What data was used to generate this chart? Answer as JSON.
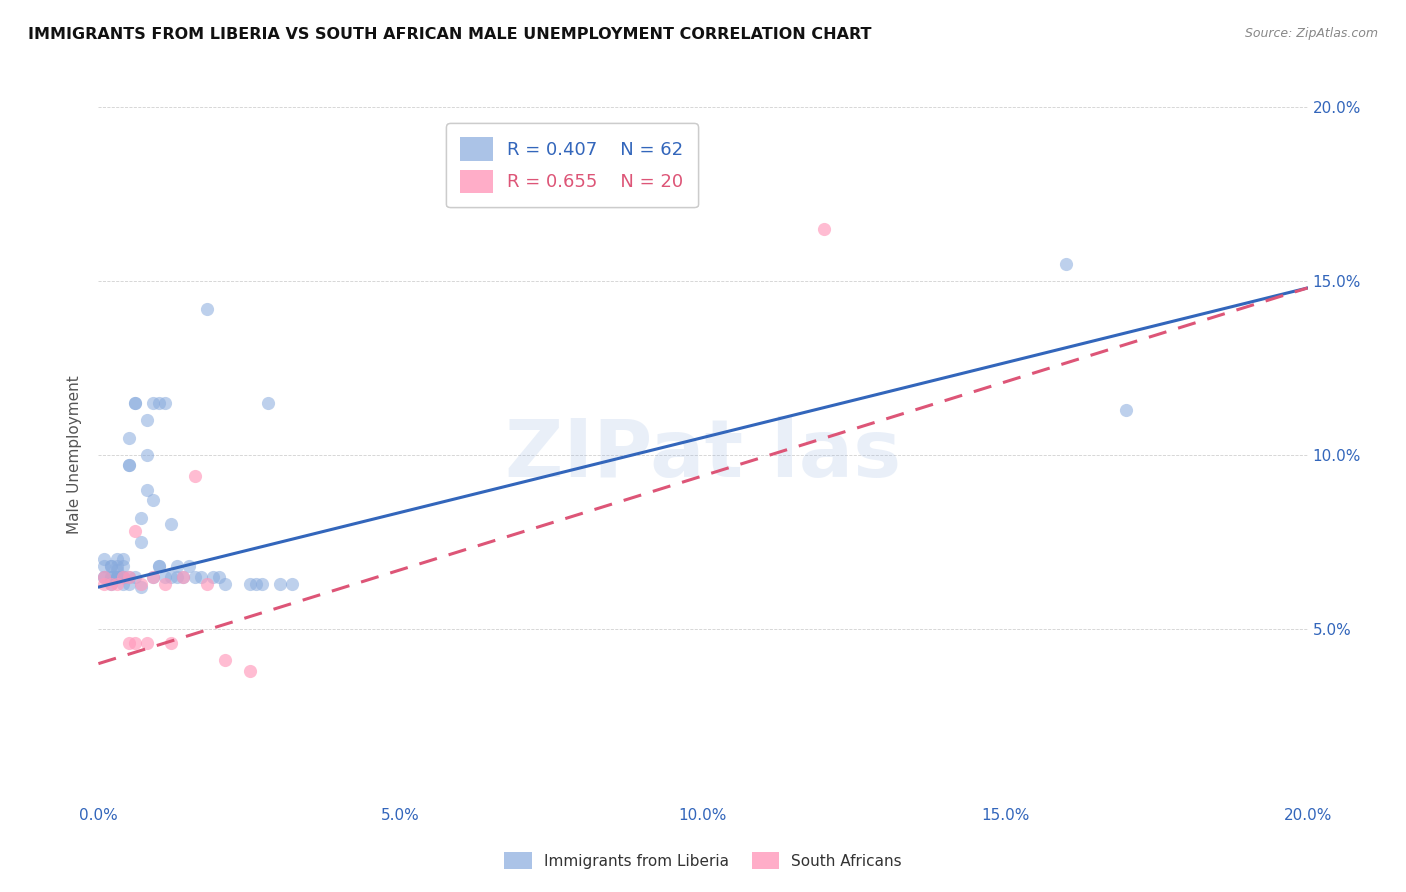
{
  "title": "IMMIGRANTS FROM LIBERIA VS SOUTH AFRICAN MALE UNEMPLOYMENT CORRELATION CHART",
  "source": "Source: ZipAtlas.com",
  "ylabel": "Male Unemployment",
  "xlim": [
    0.0,
    0.2
  ],
  "ylim": [
    0.0,
    0.2
  ],
  "xtick_labels": [
    "0.0%",
    "5.0%",
    "10.0%",
    "15.0%",
    "20.0%"
  ],
  "xtick_positions": [
    0.0,
    0.05,
    0.1,
    0.15,
    0.2
  ],
  "right_ytick_labels": [
    "5.0%",
    "10.0%",
    "15.0%",
    "20.0%"
  ],
  "right_ytick_positions": [
    0.05,
    0.1,
    0.15,
    0.2
  ],
  "blue_color": "#88AADD",
  "pink_color": "#FF99BB",
  "blue_line_color": "#3366BB",
  "pink_line_color": "#DD5577",
  "legend_R1": "R = 0.407",
  "legend_N1": "N = 62",
  "legend_R2": "R = 0.655",
  "legend_N2": "N = 20",
  "blue_scatter_x": [
    0.001,
    0.001,
    0.001,
    0.001,
    0.002,
    0.002,
    0.002,
    0.002,
    0.002,
    0.003,
    0.003,
    0.003,
    0.003,
    0.003,
    0.003,
    0.004,
    0.004,
    0.004,
    0.004,
    0.004,
    0.005,
    0.005,
    0.005,
    0.005,
    0.005,
    0.006,
    0.006,
    0.006,
    0.007,
    0.007,
    0.007,
    0.008,
    0.008,
    0.008,
    0.009,
    0.009,
    0.009,
    0.01,
    0.01,
    0.01,
    0.011,
    0.011,
    0.012,
    0.012,
    0.013,
    0.013,
    0.014,
    0.015,
    0.016,
    0.017,
    0.018,
    0.019,
    0.02,
    0.021,
    0.025,
    0.026,
    0.027,
    0.028,
    0.03,
    0.032,
    0.16,
    0.17
  ],
  "blue_scatter_y": [
    0.065,
    0.065,
    0.068,
    0.07,
    0.063,
    0.065,
    0.065,
    0.068,
    0.068,
    0.065,
    0.065,
    0.065,
    0.067,
    0.068,
    0.07,
    0.063,
    0.065,
    0.065,
    0.068,
    0.07,
    0.063,
    0.065,
    0.097,
    0.097,
    0.105,
    0.065,
    0.115,
    0.115,
    0.062,
    0.075,
    0.082,
    0.09,
    0.1,
    0.11,
    0.065,
    0.087,
    0.115,
    0.068,
    0.068,
    0.115,
    0.065,
    0.115,
    0.065,
    0.08,
    0.065,
    0.068,
    0.065,
    0.068,
    0.065,
    0.065,
    0.142,
    0.065,
    0.065,
    0.063,
    0.063,
    0.063,
    0.063,
    0.115,
    0.063,
    0.063,
    0.155,
    0.113
  ],
  "pink_scatter_x": [
    0.001,
    0.001,
    0.002,
    0.003,
    0.004,
    0.005,
    0.005,
    0.006,
    0.006,
    0.007,
    0.008,
    0.009,
    0.011,
    0.012,
    0.014,
    0.016,
    0.018,
    0.021,
    0.025,
    0.12
  ],
  "pink_scatter_y": [
    0.063,
    0.065,
    0.063,
    0.063,
    0.065,
    0.046,
    0.065,
    0.046,
    0.078,
    0.063,
    0.046,
    0.065,
    0.063,
    0.046,
    0.065,
    0.094,
    0.063,
    0.041,
    0.038,
    0.165
  ],
  "blue_trend_y_start": 0.062,
  "blue_trend_y_end": 0.148,
  "pink_trend_y_start": 0.04,
  "pink_trend_y_end": 0.148
}
